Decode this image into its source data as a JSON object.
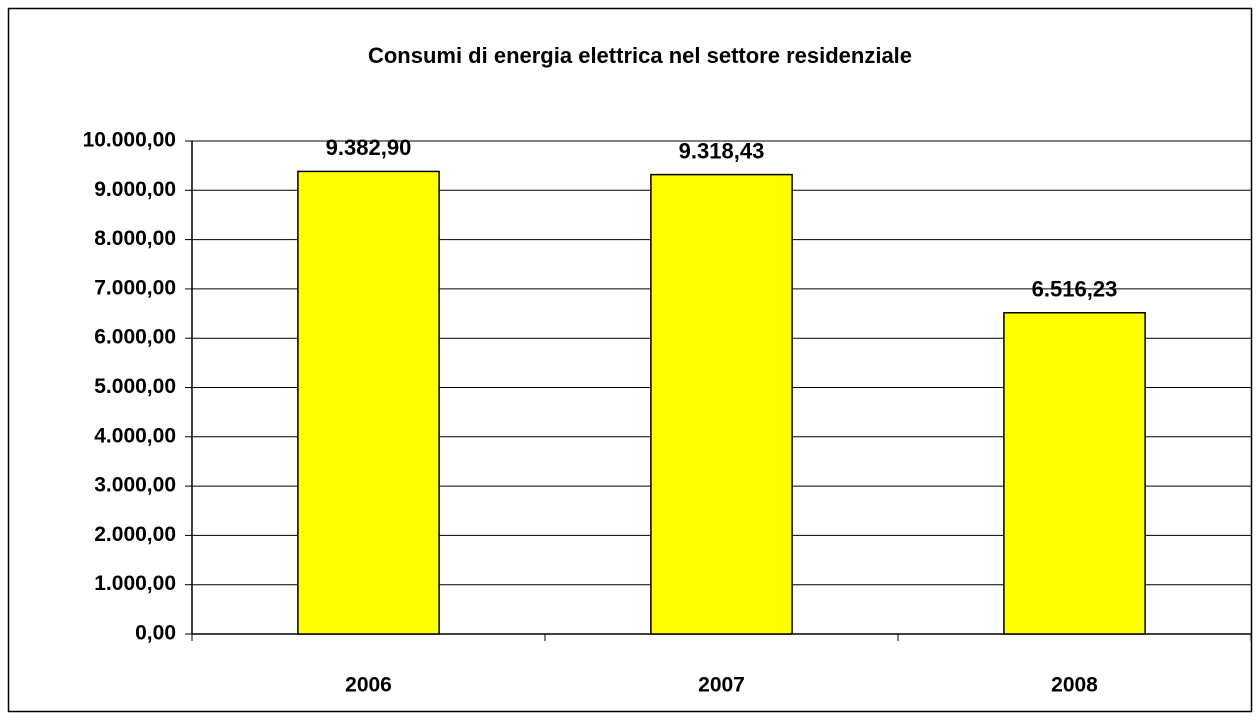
{
  "chart_data": {
    "type": "bar",
    "title": "Consumi di energia elettrica nel settore residenziale",
    "categories": [
      "2006",
      "2007",
      "2008"
    ],
    "values": [
      9382.9,
      9318.43,
      6516.23
    ],
    "value_labels": [
      "9.382,90",
      "9.318,43",
      "6.516,23"
    ],
    "color": "#ffff00",
    "ylim": [
      0,
      10000
    ],
    "yticks": [
      {
        "value": 0,
        "label": "0,00"
      },
      {
        "value": 1000,
        "label": "1.000,00"
      },
      {
        "value": 2000,
        "label": "2.000,00"
      },
      {
        "value": 3000,
        "label": "3.000,00"
      },
      {
        "value": 4000,
        "label": "4.000,00"
      },
      {
        "value": 5000,
        "label": "5.000,00"
      },
      {
        "value": 6000,
        "label": "6.000,00"
      },
      {
        "value": 7000,
        "label": "7.000,00"
      },
      {
        "value": 8000,
        "label": "8.000,00"
      },
      {
        "value": 9000,
        "label": "9.000,00"
      },
      {
        "value": 10000,
        "label": "10.000,00"
      }
    ],
    "grid": true
  }
}
